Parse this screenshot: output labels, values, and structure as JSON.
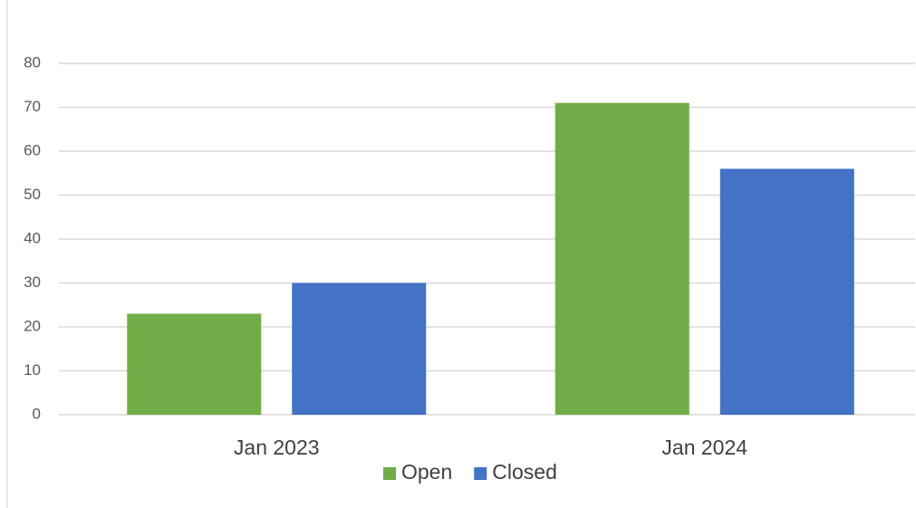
{
  "chart_data": {
    "type": "bar",
    "categories": [
      "Jan 2023",
      "Jan 2024"
    ],
    "series": [
      {
        "name": "Open",
        "color": "#70ad47",
        "values": [
          23,
          71
        ]
      },
      {
        "name": "Closed",
        "color": "#4472c4",
        "values": [
          30,
          56
        ]
      }
    ],
    "ylim": [
      0,
      80
    ],
    "yticks": [
      0,
      10,
      20,
      30,
      40,
      50,
      60,
      70,
      80
    ],
    "grid": true,
    "legend": "bottom"
  }
}
